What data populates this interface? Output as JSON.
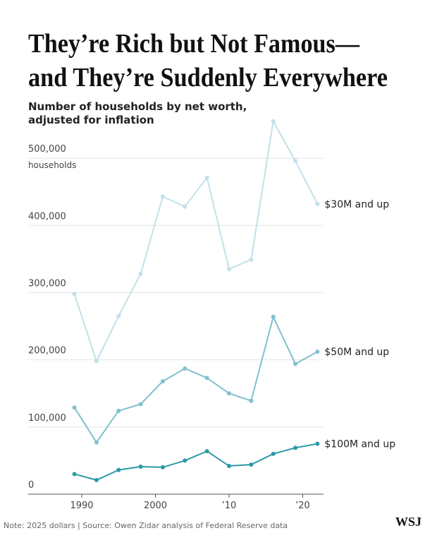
{
  "chart_data": {
    "type": "line",
    "title": [
      "They’re Rich but Not Famous—",
      "and They’re Suddenly Everywhere"
    ],
    "subtitle": [
      "Number of households by net worth,",
      "adjusted for inflation"
    ],
    "y_unit": "households",
    "x": [
      1989,
      1992,
      1995,
      1998,
      2001,
      2004,
      2007,
      2010,
      2013,
      2016,
      2019,
      2022
    ],
    "series": [
      {
        "name": "$30M and up",
        "color": "#c2e0e9",
        "values": [
          298000,
          198000,
          265000,
          328000,
          443000,
          428000,
          471000,
          335000,
          349000,
          555000,
          496000,
          432000
        ]
      },
      {
        "name": "$50M and up",
        "color": "#80c0cd",
        "values": [
          129000,
          77000,
          124000,
          134000,
          168000,
          187000,
          173000,
          150000,
          139000,
          264000,
          194000,
          212000
        ]
      },
      {
        "name": "$100M and up",
        "color": "#2b9aa7",
        "values": [
          30000,
          21000,
          36000,
          41000,
          40000,
          50000,
          64000,
          42000,
          44000,
          60000,
          69000,
          75000
        ]
      }
    ],
    "xlim": [
      1983,
      2023
    ],
    "xticks": [
      1990,
      2000,
      {
        "value": 2010,
        "label": "’10"
      },
      {
        "value": 2020,
        "label": "’20"
      }
    ],
    "ylim": [
      0,
      560000
    ],
    "yticks": [
      0,
      {
        "value": 100000,
        "label": "100,000"
      },
      {
        "value": 200000,
        "label": "200,000"
      },
      {
        "value": 300000,
        "label": "300,000"
      },
      {
        "value": 400000,
        "label": "400,000"
      },
      {
        "value": 500000,
        "label": "500,000"
      }
    ],
    "grid": true,
    "note": "Note: 2025 dollars | Source: Owen Zidar analysis of Federal Reserve data",
    "logo": "WSJ"
  }
}
